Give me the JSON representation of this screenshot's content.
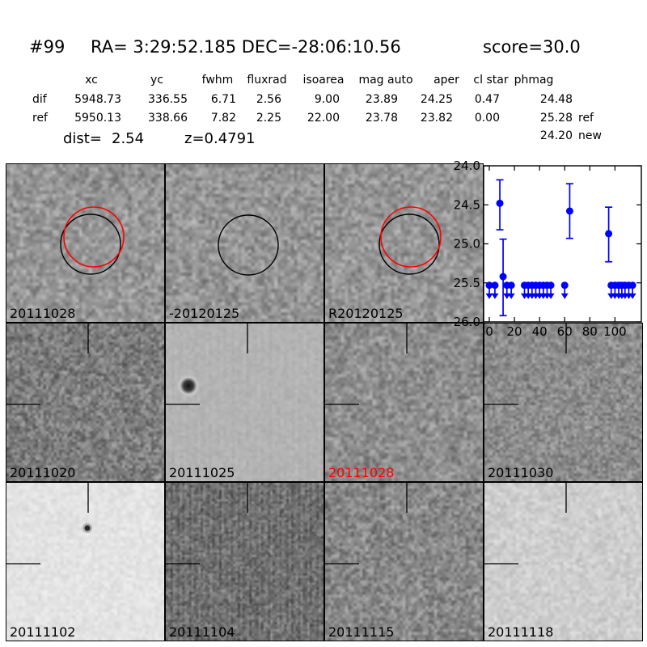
{
  "title": {
    "id": "#99",
    "coords": "RA= 3:29:52.185 DEC=-28:06:10.56",
    "score": "score=30.0"
  },
  "table": {
    "headers": [
      "xc",
      "yc",
      "fwhm",
      "fluxrad",
      "isoarea",
      "mag auto",
      "aper",
      "cl star",
      "phmag"
    ],
    "dif": {
      "label": "dif",
      "xc": "5948.73",
      "yc": "336.55",
      "fwhm": "6.71",
      "fluxrad": "2.56",
      "isoarea": "9.00",
      "mag_auto": "23.89",
      "aper": "24.25",
      "cl_star": "0.47",
      "phmag": "24.48",
      "suffix": ""
    },
    "ref": {
      "label": "ref",
      "xc": "5950.13",
      "yc": "338.66",
      "fwhm": "7.82",
      "fluxrad": "2.25",
      "isoarea": "22.00",
      "mag_auto": "23.78",
      "aper": "23.82",
      "cl_star": "0.00",
      "phmag": "25.28",
      "suffix": "ref"
    },
    "new_row": {
      "phmag": "24.20",
      "suffix": "new"
    },
    "dist_label": "dist=",
    "dist_value": "2.54",
    "z_value": "z=0.4791"
  },
  "cutouts": [
    {
      "label": "20111028",
      "annotation": "red-and-black-aperture-circles"
    },
    {
      "label": "-20120125",
      "annotation": "black-aperture-circle"
    },
    {
      "label": "R20120125",
      "annotation": "red-and-black-aperture-circles"
    },
    {
      "label": "20111020",
      "annotation": "crosshair-ticks"
    },
    {
      "label": "20111025",
      "annotation": "crosshair-ticks",
      "feature": "dark-residual-spot"
    },
    {
      "label": "20111028",
      "annotation": "crosshair-ticks",
      "label_color": "#ff0000"
    },
    {
      "label": "20111030",
      "annotation": "crosshair-ticks"
    },
    {
      "label": "20111102",
      "annotation": "crosshair-ticks",
      "feature": "small-dark-point-source"
    },
    {
      "label": "20111104",
      "annotation": "crosshair-ticks"
    },
    {
      "label": "20111115",
      "annotation": "crosshair-ticks"
    },
    {
      "label": "20111118",
      "annotation": "crosshair-ticks"
    }
  ],
  "colors": {
    "red": "#ff0000",
    "blue": "#0000ff"
  },
  "chart_data": {
    "type": "scatter",
    "title": "",
    "xlabel": "",
    "ylabel": "",
    "x_ticks": [
      0,
      20,
      40,
      60,
      80,
      100
    ],
    "y_ticks": [
      24.0,
      24.5,
      25.0,
      25.5,
      26.0
    ],
    "xlim": [
      -4.5,
      121
    ],
    "ylim": [
      24.0,
      26.0
    ],
    "y_axis_inverted": true,
    "grid": false,
    "legend": null,
    "marker_color": "#0000ff",
    "series": [
      {
        "name": "detections-with-errorbars",
        "points": [
          {
            "x": 8.4,
            "mag": 24.48,
            "err_bright": 24.18,
            "err_faint": 24.82
          },
          {
            "x": 11,
            "mag": 25.42,
            "err_bright": 24.94,
            "err_faint": 25.92
          },
          {
            "x": 64,
            "mag": 24.58,
            "err_bright": 24.23,
            "err_faint": 24.93
          },
          {
            "x": 95,
            "mag": 24.87,
            "err_bright": 24.53,
            "err_faint": 25.23
          }
        ]
      },
      {
        "name": "upper-limits",
        "limit_mag": 25.5,
        "x": [
          0,
          4.5,
          14,
          17.5,
          28,
          31,
          34,
          37,
          40,
          43,
          46,
          49,
          60,
          97,
          100,
          103,
          105.5,
          108,
          111,
          114
        ]
      }
    ]
  }
}
